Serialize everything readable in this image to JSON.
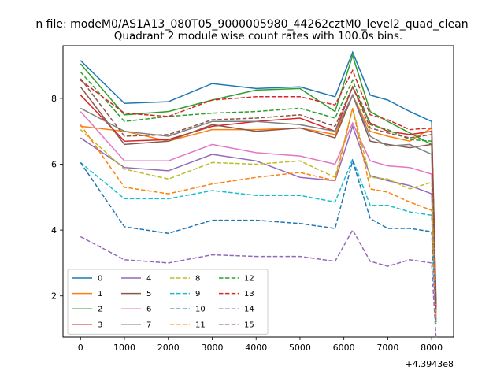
{
  "chart_data": {
    "type": "line",
    "suptitle": "n file: modeM0/AS1A13_080T05_9000005980_44262cztM0_level2_quad_clean",
    "title": "Quadrant 2 module wise count rates with 100.0s bins.",
    "xlabel": "",
    "ylabel": "",
    "x_offset_label": "+4.3943e8",
    "xlim": [
      -400,
      8500
    ],
    "ylim": [
      0.75,
      9.6
    ],
    "xticks": [
      0,
      1000,
      2000,
      3000,
      4000,
      5000,
      6000,
      7000,
      8000
    ],
    "yticks": [
      2,
      4,
      6,
      8
    ],
    "grid": false,
    "legend_position": "lower-left",
    "legend_columns": 4,
    "x": [
      0,
      1000,
      2000,
      3000,
      4000,
      5000,
      5800,
      6200,
      6600,
      7000,
      7500,
      8000,
      8100
    ],
    "series": [
      {
        "name": "0",
        "style": "solid",
        "color": "#1f77b4",
        "values": [
          9.15,
          7.85,
          7.9,
          8.45,
          8.3,
          8.35,
          8.05,
          9.4,
          8.1,
          7.95,
          7.6,
          7.3,
          1.9
        ]
      },
      {
        "name": "1",
        "style": "solid",
        "color": "#ff7f0e",
        "values": [
          7.15,
          7.0,
          6.7,
          7.05,
          7.05,
          7.1,
          6.9,
          8.1,
          7.0,
          6.85,
          6.7,
          7.1,
          1.6
        ]
      },
      {
        "name": "2",
        "style": "solid",
        "color": "#2ca02c",
        "values": [
          9.05,
          7.5,
          7.6,
          7.95,
          8.25,
          8.3,
          7.6,
          9.3,
          7.6,
          7.3,
          6.95,
          6.6,
          1.6
        ]
      },
      {
        "name": "3",
        "style": "solid",
        "color": "#d62728",
        "values": [
          8.1,
          6.7,
          6.75,
          7.15,
          7.3,
          7.4,
          7.0,
          8.35,
          7.25,
          7.0,
          6.9,
          7.0,
          1.7
        ]
      },
      {
        "name": "4",
        "style": "solid",
        "color": "#9467bd",
        "values": [
          6.8,
          5.9,
          5.8,
          6.3,
          6.1,
          5.6,
          5.5,
          7.15,
          5.65,
          5.5,
          5.35,
          5.1,
          1.25
        ]
      },
      {
        "name": "5",
        "style": "solid",
        "color": "#8c564b",
        "values": [
          8.35,
          6.6,
          6.7,
          7.2,
          7.0,
          7.1,
          6.8,
          8.1,
          6.7,
          6.6,
          6.5,
          6.6,
          1.5
        ]
      },
      {
        "name": "6",
        "style": "solid",
        "color": "#e377c2",
        "values": [
          7.6,
          6.1,
          6.1,
          6.6,
          6.35,
          6.25,
          6.0,
          7.25,
          6.1,
          5.95,
          5.9,
          5.7,
          1.35
        ]
      },
      {
        "name": "7",
        "style": "solid",
        "color": "#7f7f7f",
        "values": [
          7.7,
          7.0,
          6.85,
          7.3,
          7.3,
          7.2,
          7.0,
          8.1,
          6.85,
          6.55,
          6.6,
          6.3,
          1.55
        ]
      },
      {
        "name": "8",
        "style": "dashed",
        "color": "#bcbd22",
        "values": [
          7.05,
          5.85,
          5.55,
          6.05,
          6.0,
          6.1,
          5.6,
          7.7,
          5.6,
          5.55,
          5.25,
          5.45,
          1.35
        ]
      },
      {
        "name": "9",
        "style": "dashed",
        "color": "#17becf",
        "values": [
          6.05,
          4.95,
          4.95,
          5.2,
          5.05,
          5.05,
          4.85,
          6.15,
          4.75,
          4.75,
          4.55,
          4.45,
          1.15
        ]
      },
      {
        "name": "10",
        "style": "dashed",
        "color": "#1f77b4",
        "values": [
          6.05,
          4.1,
          3.9,
          4.3,
          4.3,
          4.2,
          4.05,
          6.1,
          4.35,
          4.05,
          4.05,
          3.95,
          1.2
        ]
      },
      {
        "name": "11",
        "style": "dashed",
        "color": "#ff7f0e",
        "values": [
          7.2,
          5.3,
          5.1,
          5.4,
          5.6,
          5.75,
          5.5,
          7.7,
          5.25,
          5.15,
          4.85,
          4.6,
          1.25
        ]
      },
      {
        "name": "12",
        "style": "dashed",
        "color": "#2ca02c",
        "values": [
          8.8,
          7.3,
          7.45,
          7.55,
          7.6,
          7.7,
          7.4,
          8.55,
          7.2,
          7.05,
          6.75,
          6.7,
          1.65
        ]
      },
      {
        "name": "13",
        "style": "dashed",
        "color": "#d62728",
        "values": [
          8.55,
          7.55,
          7.45,
          7.95,
          8.05,
          8.05,
          7.8,
          8.85,
          7.5,
          7.35,
          7.05,
          7.1,
          1.7
        ]
      },
      {
        "name": "14",
        "style": "dashed",
        "color": "#9467bd",
        "values": [
          3.8,
          3.1,
          3.0,
          3.25,
          3.2,
          3.2,
          3.05,
          4.0,
          3.05,
          2.9,
          3.1,
          3.0,
          0.7
        ]
      },
      {
        "name": "15",
        "style": "dashed",
        "color": "#8c564b",
        "values": [
          8.6,
          6.85,
          6.9,
          7.35,
          7.4,
          7.5,
          7.15,
          8.35,
          7.1,
          6.95,
          6.8,
          6.9,
          1.6
        ]
      }
    ]
  }
}
